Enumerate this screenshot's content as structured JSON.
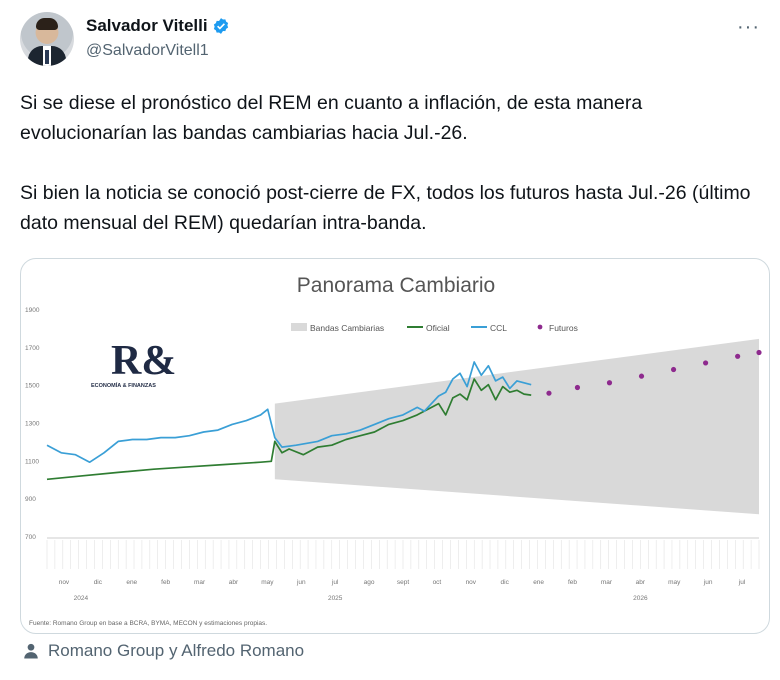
{
  "author": {
    "name": "Salvador Vitelli",
    "handle": "@SalvadorVitell1"
  },
  "tweet": {
    "paragraphs": [
      "Si se diese el pronóstico del REM en cuanto a inflación, de esta manera evolucionarían las bandas cambiarias hacia Jul.-26.",
      "Si bien la noticia se conoció post-cierre de FX, todos los futuros hasta Jul.-26 (último dato mensual del REM) quedarían intra-banda."
    ]
  },
  "chart_data": {
    "type": "line",
    "title": "Panorama Cambiario",
    "logo_text": "R&",
    "logo_subtitle": "ECONOMÍA & FINANZAS",
    "source": "Fuente: Romano Group en base a BCRA, BYMA, MECON y estimaciones propias.",
    "legend": [
      "Bandas Cambiarias",
      "Oficial",
      "CCL",
      "Futuros"
    ],
    "legend_placement": "top-center",
    "ylim": [
      700,
      1900
    ],
    "yticks": [
      700,
      900,
      1100,
      1300,
      1500,
      1700,
      1900
    ],
    "colors": {
      "band": "#d9d9d9",
      "oficial": "#2f7d32",
      "ccl": "#3a9fd6",
      "futuros": "#8e2a8e"
    },
    "month_labels": [
      "nov",
      "dic",
      "ene",
      "feb",
      "mar",
      "abr",
      "may",
      "jun",
      "jul",
      "ago",
      "sept",
      "oct",
      "nov",
      "dic",
      "ene",
      "feb",
      "mar",
      "abr",
      "may",
      "jun",
      "jul"
    ],
    "year_labels": [
      "2024",
      "2025",
      "2026"
    ],
    "band": {
      "x": [
        0.32,
        1.0
      ],
      "upper": [
        1400,
        1742
      ],
      "lower": [
        1000,
        815
      ]
    },
    "series": [
      {
        "name": "Oficial",
        "x": [
          0.0,
          0.05,
          0.1,
          0.15,
          0.2,
          0.25,
          0.3,
          0.315,
          0.32,
          0.33,
          0.34,
          0.36,
          0.38,
          0.4,
          0.42,
          0.44,
          0.46,
          0.48,
          0.5,
          0.52,
          0.54,
          0.55,
          0.56,
          0.57,
          0.58,
          0.59,
          0.6,
          0.61,
          0.62,
          0.63,
          0.64,
          0.65,
          0.66,
          0.67,
          0.68
        ],
        "values": [
          1000,
          1018,
          1036,
          1053,
          1066,
          1078,
          1090,
          1095,
          1200,
          1140,
          1160,
          1130,
          1170,
          1180,
          1210,
          1230,
          1250,
          1290,
          1310,
          1340,
          1380,
          1400,
          1340,
          1430,
          1450,
          1420,
          1530,
          1470,
          1500,
          1420,
          1490,
          1460,
          1470,
          1450,
          1445
        ]
      },
      {
        "name": "CCL",
        "x": [
          0.0,
          0.02,
          0.04,
          0.06,
          0.08,
          0.1,
          0.12,
          0.14,
          0.16,
          0.18,
          0.2,
          0.22,
          0.24,
          0.26,
          0.28,
          0.3,
          0.31,
          0.32,
          0.33,
          0.35,
          0.38,
          0.4,
          0.42,
          0.44,
          0.46,
          0.48,
          0.5,
          0.52,
          0.53,
          0.54,
          0.55,
          0.56,
          0.57,
          0.58,
          0.59,
          0.6,
          0.61,
          0.62,
          0.63,
          0.64,
          0.65,
          0.66,
          0.67,
          0.68
        ],
        "values": [
          1180,
          1140,
          1130,
          1090,
          1140,
          1200,
          1210,
          1210,
          1220,
          1220,
          1230,
          1250,
          1260,
          1290,
          1310,
          1340,
          1370,
          1220,
          1170,
          1180,
          1200,
          1230,
          1240,
          1260,
          1290,
          1320,
          1340,
          1380,
          1360,
          1400,
          1440,
          1460,
          1530,
          1560,
          1490,
          1620,
          1550,
          1600,
          1520,
          1540,
          1480,
          1520,
          1510,
          1500
        ]
      }
    ],
    "futuros": {
      "x": [
        0.705,
        0.745,
        0.79,
        0.835,
        0.88,
        0.925,
        0.97,
        1.0
      ],
      "values": [
        1455,
        1485,
        1510,
        1545,
        1580,
        1615,
        1650,
        1670
      ]
    }
  }
}
